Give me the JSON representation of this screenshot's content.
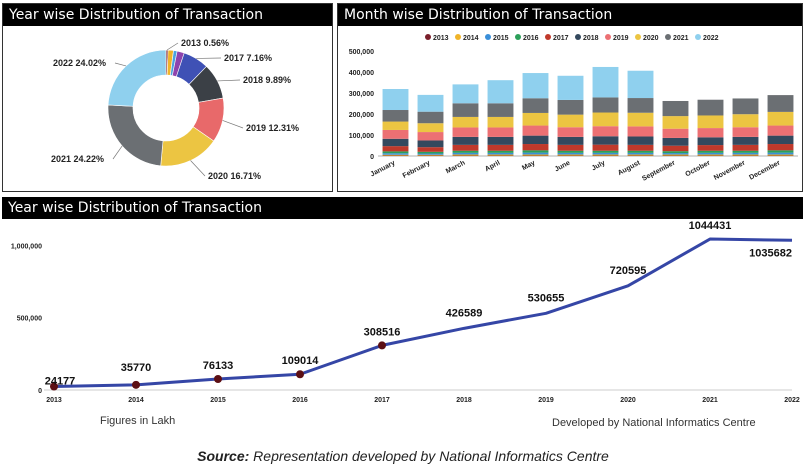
{
  "panels": {
    "pie_title": "Year wise Distribution of Transaction",
    "month_title": "Month wise Distribution of Transaction",
    "year_title": "Year wise Distribution of Transaction"
  },
  "notes": {
    "figures_in": "Figures in Lakh",
    "developed_by": "Developed by National Informatics Centre"
  },
  "source": {
    "label": "Source:",
    "text": "Representation developed by National Informatics Centre"
  },
  "chart_data": [
    {
      "type": "pie",
      "title": "Year wise Distribution of Transaction",
      "donut": true,
      "slices": [
        {
          "label": "2013",
          "value": 0.56,
          "text": "2013 0.56%",
          "color": "#7a1f2b"
        },
        {
          "label": "2014",
          "value": 1.5,
          "text": "",
          "color": "#f0b429"
        },
        {
          "label": "2015",
          "value": 1.0,
          "text": "",
          "color": "#4aa3df"
        },
        {
          "label": "2016",
          "value": 2.0,
          "text": "",
          "color": "#8e44ad"
        },
        {
          "label": "2017",
          "value": 7.16,
          "text": "2017 7.16%",
          "color": "#3f51b5"
        },
        {
          "label": "2018",
          "value": 9.89,
          "text": "2018 9.89%",
          "color": "#3b4046"
        },
        {
          "label": "2019",
          "value": 12.31,
          "text": "2019 12.31%",
          "color": "#e8696a"
        },
        {
          "label": "2020",
          "value": 16.71,
          "text": "2020 16.71%",
          "color": "#ecc542"
        },
        {
          "label": "2021",
          "value": 24.22,
          "text": "2021 24.22%",
          "color": "#6b6f73"
        },
        {
          "label": "2022",
          "value": 24.02,
          "text": "2022 24.02%",
          "color": "#8fd0ee"
        }
      ]
    },
    {
      "type": "bar",
      "stacked": true,
      "title": "Month wise Distribution of Transaction",
      "categories": [
        "January",
        "February",
        "March",
        "April",
        "May",
        "June",
        "July",
        "August",
        "September",
        "October",
        "November",
        "December"
      ],
      "ylim": [
        0,
        500000
      ],
      "yticks": [
        0,
        100000,
        200000,
        300000,
        400000,
        500000
      ],
      "ytick_labels": [
        "0",
        "100,000",
        "200,000",
        "300,000",
        "400,000",
        "500,000"
      ],
      "legend_position": "top",
      "series": [
        {
          "name": "2013",
          "color": "#7a1f2b",
          "values": [
            2000,
            2000,
            2000,
            2000,
            2000,
            2000,
            2000,
            2000,
            2000,
            2000,
            2000,
            2000
          ]
        },
        {
          "name": "2014",
          "color": "#f0b429",
          "values": [
            4000,
            4000,
            5000,
            5000,
            5000,
            5000,
            5000,
            5000,
            5000,
            5000,
            5000,
            5000
          ]
        },
        {
          "name": "2015",
          "color": "#3a8fd9",
          "values": [
            7000,
            6000,
            8000,
            8000,
            9000,
            8000,
            8000,
            8000,
            7000,
            8000,
            8000,
            9000
          ]
        },
        {
          "name": "2016",
          "color": "#2ca05a",
          "values": [
            9000,
            8000,
            10000,
            10000,
            11000,
            10000,
            10000,
            10000,
            9000,
            10000,
            10000,
            11000
          ]
        },
        {
          "name": "2017",
          "color": "#c0392b",
          "values": [
            25000,
            22000,
            28000,
            28000,
            30000,
            28000,
            29000,
            28000,
            26000,
            27000,
            28000,
            30000
          ]
        },
        {
          "name": "2018",
          "color": "#34495e",
          "values": [
            35000,
            32000,
            38000,
            38000,
            40000,
            38000,
            40000,
            40000,
            37000,
            37000,
            38000,
            40000
          ]
        },
        {
          "name": "2019",
          "color": "#ec7073",
          "values": [
            42000,
            40000,
            45000,
            45000,
            48000,
            46000,
            48000,
            48000,
            44000,
            44000,
            46000,
            48000
          ]
        },
        {
          "name": "2020",
          "color": "#ecc542",
          "values": [
            40000,
            42000,
            50000,
            50000,
            60000,
            60000,
            65000,
            65000,
            60000,
            60000,
            62000,
            65000
          ]
        },
        {
          "name": "2021",
          "color": "#6b6f73",
          "values": [
            55000,
            55000,
            65000,
            65000,
            70000,
            70000,
            72000,
            70000,
            72000,
            75000,
            75000,
            80000
          ]
        },
        {
          "name": "2022",
          "color": "#8fd0ee",
          "values": [
            100000,
            80000,
            90000,
            110000,
            120000,
            115000,
            145000,
            130000,
            0,
            0,
            0,
            0
          ]
        }
      ]
    },
    {
      "type": "line",
      "title": "Year wise Distribution of Transaction",
      "x": [
        "2013",
        "2014",
        "2015",
        "2016",
        "2017",
        "2018",
        "2019",
        "2020",
        "2021",
        "2022"
      ],
      "y": [
        24177,
        35770,
        76133,
        109014,
        308516,
        426589,
        530655,
        720595,
        1044431,
        1035682
      ],
      "point_labels": [
        "24177",
        "35770",
        "76133",
        "109014",
        "308516",
        "426589",
        "530655",
        "720595",
        "1044431",
        "1035682"
      ],
      "marked_points": [
        0,
        1,
        2,
        3,
        4
      ],
      "ylim": [
        0,
        1100000
      ],
      "yticks": [
        0,
        500000,
        1000000
      ],
      "ytick_labels": [
        "0",
        "500,000",
        "1,000,000"
      ],
      "line_color": "#3546a6",
      "marker_color": "#5c0f14"
    }
  ]
}
